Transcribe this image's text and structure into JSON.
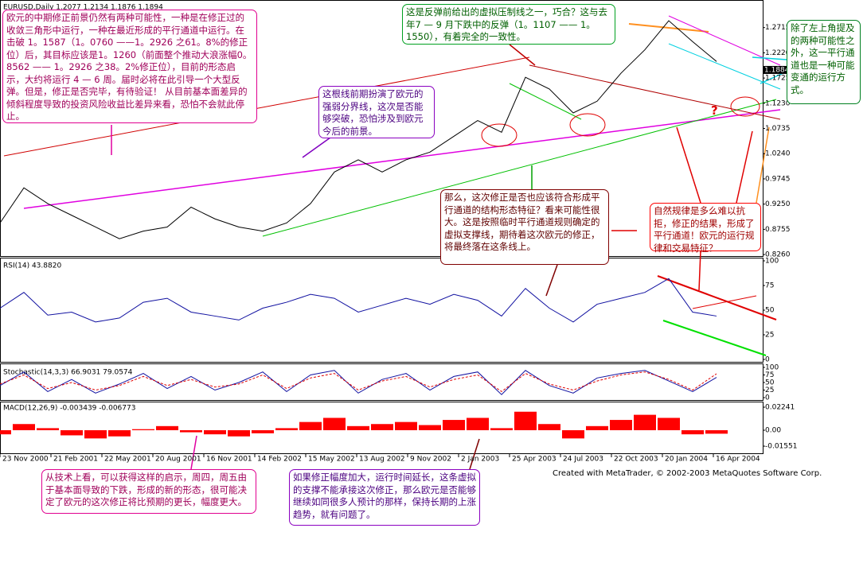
{
  "chart_data": [
    {
      "type": "line",
      "title": "EURUSD,Daily  1.2077 1.2134 1.1876 1.1894",
      "x": [
        0,
        30,
        60,
        90,
        120,
        150,
        180,
        210,
        240,
        270,
        300,
        330,
        360,
        390,
        420,
        450,
        480,
        510,
        540,
        570,
        600,
        630,
        660,
        690,
        720,
        750,
        780,
        810,
        840,
        870,
        900
      ],
      "series": [
        {
          "color": "#000000",
          "values": [
            0.888,
            0.957,
            0.926,
            0.903,
            0.88,
            0.857,
            0.872,
            0.88,
            0.919,
            0.896,
            0.88,
            0.872,
            0.888,
            0.926,
            0.988,
            1.012,
            0.988,
            1.012,
            1.027,
            1.058,
            1.089,
            1.066,
            1.174,
            1.151,
            1.104,
            1.127,
            1.182,
            1.228,
            1.285,
            1.244,
            1.205
          ]
        }
      ],
      "xlim": [
        0,
        958
      ],
      "xticks": [
        {
          "value": 0,
          "label": "23 Nov 2000"
        },
        {
          "value": 64,
          "label": "21 Feb 2001"
        },
        {
          "value": 128,
          "label": "22 May 2001"
        },
        {
          "value": 192,
          "label": "20 Aug 2001"
        },
        {
          "value": 256,
          "label": "16 Nov 2001"
        },
        {
          "value": 320,
          "label": "14 Feb 2002"
        },
        {
          "value": 384,
          "label": "15 May 2002"
        },
        {
          "value": 448,
          "label": "13 Aug 2002"
        },
        {
          "value": 512,
          "label": "9 Nov 2002"
        },
        {
          "value": 576,
          "label": "2 Jan 2003"
        },
        {
          "value": 640,
          "label": "25 Apr 2003"
        },
        {
          "value": 704,
          "label": "24 Jul 2003"
        },
        {
          "value": 768,
          "label": "22 Oct 2003"
        },
        {
          "value": 832,
          "label": "20 Jan 2004"
        },
        {
          "value": 896,
          "label": "16 Apr 2004"
        }
      ],
      "ylim": [
        0.823,
        1.321
      ],
      "yticks": [
        1.2715,
        {
          "value": 1.222,
          "label": "1.2220"
        },
        1.1725,
        {
          "value": 1.123,
          "label": "1.1230"
        },
        1.0735,
        {
          "value": 1.024,
          "label": "1.0240"
        },
        0.9745,
        {
          "value": 0.925,
          "label": "0.9250"
        },
        0.8755,
        {
          "value": 0.826,
          "label": "0.8260"
        }
      ],
      "current_price": 1.1884
    },
    {
      "type": "line",
      "title": "RSI(14) 43.8820",
      "x": [
        0,
        30,
        60,
        90,
        120,
        150,
        180,
        210,
        240,
        270,
        300,
        330,
        360,
        390,
        420,
        450,
        480,
        510,
        540,
        570,
        600,
        630,
        660,
        690,
        720,
        750,
        780,
        810,
        840,
        870,
        900
      ],
      "series": [
        {
          "color": "#1010a0",
          "values": [
            52,
            68,
            45,
            48,
            38,
            42,
            58,
            62,
            48,
            44,
            40,
            52,
            58,
            66,
            62,
            48,
            55,
            62,
            56,
            66,
            60,
            44,
            72,
            52,
            38,
            56,
            62,
            68,
            82,
            48,
            44
          ]
        }
      ],
      "xlim": [
        0,
        958
      ],
      "ylim": [
        0,
        100
      ],
      "yticks": [
        100,
        75,
        50,
        25,
        0
      ]
    },
    {
      "type": "line",
      "title": "Stochastic(14,3,3) 66.9031 79.0574",
      "x": [
        0,
        30,
        60,
        90,
        120,
        150,
        180,
        210,
        240,
        270,
        300,
        330,
        360,
        390,
        420,
        450,
        480,
        510,
        540,
        570,
        600,
        630,
        660,
        690,
        720,
        750,
        780,
        810,
        840,
        870,
        900
      ],
      "series": [
        {
          "color": "#1010a0",
          "values": [
            40,
            85,
            20,
            60,
            15,
            45,
            80,
            30,
            70,
            25,
            50,
            85,
            20,
            75,
            90,
            15,
            60,
            80,
            25,
            70,
            85,
            10,
            90,
            40,
            15,
            65,
            80,
            90,
            55,
            20,
            67
          ]
        },
        {
          "color": "#e00000",
          "dashed": true,
          "values": [
            45,
            75,
            30,
            50,
            25,
            40,
            70,
            40,
            60,
            35,
            45,
            75,
            30,
            65,
            80,
            25,
            55,
            70,
            35,
            60,
            75,
            20,
            80,
            45,
            25,
            55,
            75,
            85,
            60,
            25,
            79
          ]
        }
      ],
      "xlim": [
        0,
        958
      ],
      "ylim": [
        0,
        100
      ],
      "yticks": [
        100,
        75,
        50,
        25,
        0
      ]
    },
    {
      "type": "bar",
      "title": "MACD(12,26,9) -0.003439 -0.006773",
      "x": [
        0,
        30,
        60,
        90,
        120,
        150,
        180,
        210,
        240,
        270,
        300,
        330,
        360,
        390,
        420,
        450,
        480,
        510,
        540,
        570,
        600,
        630,
        660,
        690,
        720,
        750,
        780,
        810,
        840,
        870,
        900
      ],
      "series": [
        {
          "color": "#ff0000",
          "values": [
            -0.004,
            0.006,
            0.002,
            -0.005,
            -0.008,
            -0.006,
            0.001,
            0.004,
            -0.002,
            -0.004,
            -0.006,
            -0.003,
            0.002,
            0.008,
            0.012,
            0.004,
            0.006,
            0.008,
            0.005,
            0.01,
            0.012,
            0.002,
            0.018,
            0.006,
            -0.008,
            0.004,
            0.01,
            0.015,
            0.012,
            -0.004,
            -0.0034
          ]
        }
      ],
      "xlim": [
        0,
        958
      ],
      "ylim": [
        -0.0209,
        0.0263
      ],
      "yticks": [
        0.02241,
        {
          "value": 0,
          "label": "0.00"
        },
        -0.01551
      ]
    }
  ],
  "annotations": [
    "欧元的中期修正前景仍然有两种可能性，一种是在修正过的收敛三角形中运行，一种在最近形成的平行通道中运行。在击破 1。1587（1。0760 ——1。2926 之61。8%的修正位）后，其目标应该是1。1260（前面整个推动大浪涨幅0。8562 —— 1。2926 之38。2%修正位），目前的形态启示，大约将运行 4 — 6 周。届时必将在此引导一个大型反弹。但是，修正是否完毕，有待验证！ 从目前基本面差异的倾斜程度导致的投资风险收益比差异来看，恐怕不会就此停止。",
    "这根线前期扮演了欧元的强弱分界线，这次是否能够突破，恐怕涉及到欧元今后的前景。",
    "这是反弹前给出的虚拟压制线之一，巧合？这与去年7 — 9 月下跌中的反弹（1。1107 —— 1。1550），有着完全的一致性。",
    "除了左上角提及的两种可能性之外，这一平行通道也是一种可能变通的运行方式。",
    "那么，这次修正是否也应该符合形成平行通道的结构形态特征？看来可能性很大。这是按照临时平行通道规则确定的虚拟支撑线，期待着这次欧元的修正，将最终落在这条线上。",
    "自然规律是多么难以抗拒，修正的结果，形成了平行通道！欧元的运行规律和交易特征？",
    "从技术上看，可以获得这样的启示，周四，周五由于基本面导致的下跌，形成的新的形态，很可能决定了欧元的这次修正将比预期的更长，幅度更大。",
    "如果修正幅度加大，运行时间延长，这条虚拟的支撑不能承接这次修正，那么欧元是否能够继续如同很多人预计的那样，保持长期的上涨趋势，就有问题了。"
  ],
  "question_mark": "?",
  "footer": "Created with MetaTrader, © 2002-2003 MetaQuotes Software Corp."
}
